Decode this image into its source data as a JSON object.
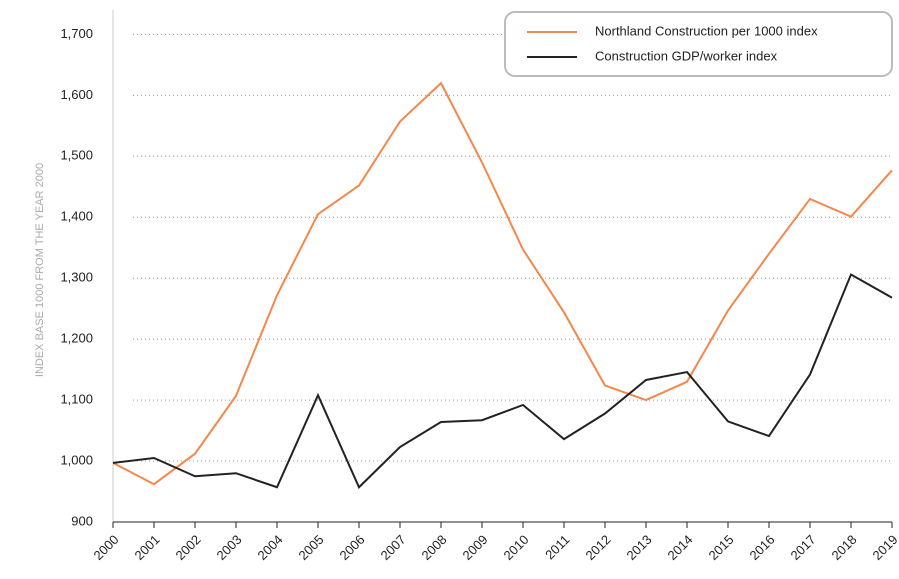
{
  "chart_data": {
    "type": "line",
    "y_axis_label": "INDEX BASE 1000 FROM THE YEAR 2000",
    "categories": [
      "2000",
      "2001",
      "2002",
      "2003",
      "2004",
      "2005",
      "2006",
      "2007",
      "2008",
      "2009",
      "2010",
      "2011",
      "2012",
      "2013",
      "2014",
      "2015",
      "2016",
      "2017",
      "2018",
      "2019"
    ],
    "series": [
      {
        "name": "Northland Construction per 1000 index",
        "color": "#f4874b",
        "values": [
          997,
          962,
          1012,
          1107,
          1272,
          1405,
          1452,
          1557,
          1620,
          1490,
          1347,
          1244,
          1124,
          1100,
          1130,
          1247,
          1340,
          1430,
          1401,
          1477
        ]
      },
      {
        "name": "Construction GDP/worker index",
        "color": "#222222",
        "values": [
          997,
          1005,
          975,
          980,
          957,
          1108,
          957,
          1023,
          1064,
          1067,
          1092,
          1036,
          1078,
          1133,
          1146,
          1065,
          1041,
          1142,
          1306,
          1268
        ]
      }
    ],
    "ylim": [
      900,
      1740
    ],
    "yticks": [
      900,
      {
        "value": 1000,
        "label": "1,000"
      },
      {
        "value": 1100,
        "label": "1,100"
      },
      {
        "value": 1200,
        "label": "1,200"
      },
      {
        "value": 1300,
        "label": "1,300"
      },
      {
        "value": 1400,
        "label": "1,400"
      },
      {
        "value": 1500,
        "label": "1,500"
      },
      {
        "value": 1600,
        "label": "1,600"
      },
      {
        "value": 1700,
        "label": "1,700"
      }
    ],
    "grid": true,
    "legend": "top-right"
  }
}
